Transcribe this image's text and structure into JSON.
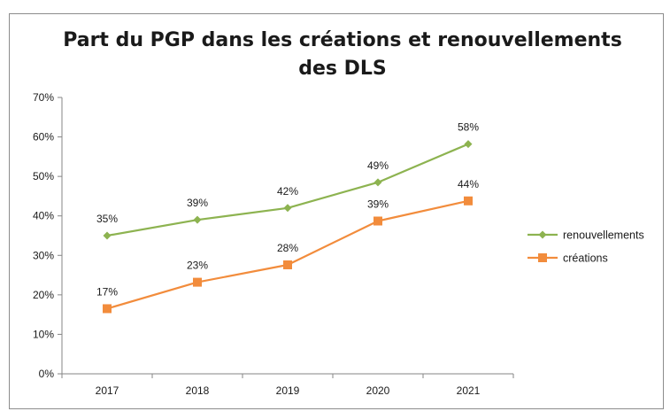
{
  "chart_data": {
    "type": "line",
    "title_lines": [
      "Part du PGP dans les créations et renouvellements",
      "des DLS"
    ],
    "categories": [
      "2017",
      "2018",
      "2019",
      "2020",
      "2021"
    ],
    "ylim": [
      0,
      70
    ],
    "yticks": [
      0,
      10,
      20,
      30,
      40,
      50,
      60,
      70
    ],
    "ytick_labels": [
      "0%",
      "10%",
      "20%",
      "30%",
      "40%",
      "50%",
      "60%",
      "70%"
    ],
    "grid": false,
    "legend_position": "right",
    "series": [
      {
        "name": "renouvellements",
        "values": [
          35,
          39,
          42,
          48.5,
          58.2
        ],
        "labels": [
          "35%",
          "39%",
          "42%",
          "49%",
          "58%"
        ],
        "color": "#8db350",
        "marker": "diamond"
      },
      {
        "name": "créations",
        "values": [
          16.5,
          23.2,
          27.6,
          38.7,
          43.8
        ],
        "labels": [
          "17%",
          "23%",
          "28%",
          "39%",
          "44%"
        ],
        "color": "#f28c3c",
        "marker": "square"
      }
    ]
  }
}
